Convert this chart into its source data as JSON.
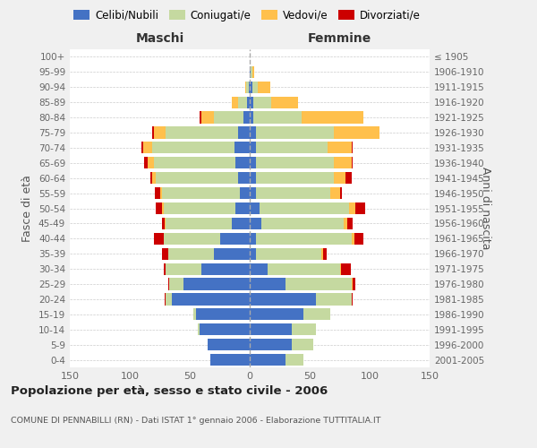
{
  "age_groups": [
    "0-4",
    "5-9",
    "10-14",
    "15-19",
    "20-24",
    "25-29",
    "30-34",
    "35-39",
    "40-44",
    "45-49",
    "50-54",
    "55-59",
    "60-64",
    "65-69",
    "70-74",
    "75-79",
    "80-84",
    "85-89",
    "90-94",
    "95-99",
    "100+"
  ],
  "birth_years": [
    "2001-2005",
    "1996-2000",
    "1991-1995",
    "1986-1990",
    "1981-1985",
    "1976-1980",
    "1971-1975",
    "1966-1970",
    "1961-1965",
    "1956-1960",
    "1951-1955",
    "1946-1950",
    "1941-1945",
    "1936-1940",
    "1931-1935",
    "1926-1930",
    "1921-1925",
    "1916-1920",
    "1911-1915",
    "1906-1910",
    "≤ 1905"
  ],
  "males": {
    "celibe": [
      33,
      35,
      42,
      45,
      65,
      55,
      40,
      30,
      25,
      15,
      12,
      8,
      10,
      12,
      13,
      10,
      5,
      2,
      1,
      0,
      0
    ],
    "coniugato": [
      0,
      0,
      1,
      2,
      5,
      12,
      30,
      38,
      47,
      55,
      60,
      65,
      68,
      68,
      68,
      60,
      25,
      8,
      2,
      0,
      0
    ],
    "vedovo": [
      0,
      0,
      0,
      0,
      0,
      0,
      0,
      0,
      0,
      1,
      1,
      2,
      3,
      5,
      8,
      10,
      10,
      5,
      1,
      0,
      0
    ],
    "divorziato": [
      0,
      0,
      0,
      0,
      1,
      1,
      2,
      5,
      8,
      2,
      5,
      4,
      2,
      3,
      1,
      1,
      2,
      0,
      0,
      0,
      0
    ]
  },
  "females": {
    "nubile": [
      30,
      35,
      35,
      45,
      55,
      30,
      15,
      5,
      5,
      10,
      8,
      5,
      5,
      5,
      5,
      5,
      3,
      3,
      2,
      1,
      0
    ],
    "coniugata": [
      15,
      18,
      20,
      22,
      30,
      55,
      60,
      55,
      80,
      68,
      75,
      62,
      65,
      65,
      60,
      65,
      40,
      15,
      5,
      1,
      0
    ],
    "vedova": [
      0,
      0,
      0,
      0,
      0,
      1,
      1,
      1,
      2,
      3,
      5,
      8,
      10,
      15,
      20,
      38,
      52,
      22,
      10,
      2,
      0
    ],
    "divorziata": [
      0,
      0,
      0,
      0,
      1,
      2,
      8,
      3,
      8,
      5,
      8,
      2,
      5,
      1,
      1,
      0,
      0,
      0,
      0,
      0,
      0
    ]
  },
  "colors": {
    "celibe": "#4472c4",
    "coniugato": "#c5d9a0",
    "vedovo": "#ffc04c",
    "divorziato": "#cc0000"
  },
  "xlim": 150,
  "title": "Popolazione per età, sesso e stato civile - 2006",
  "subtitle": "COMUNE DI PENNABILLI (RN) - Dati ISTAT 1° gennaio 2006 - Elaborazione TUTTITALIA.IT",
  "xlabel_left": "Maschi",
  "xlabel_right": "Femmine",
  "ylabel_left": "Fasce di età",
  "ylabel_right": "Anni di nascita",
  "bg_color": "#f0f0f0",
  "plot_bg_color": "#ffffff"
}
